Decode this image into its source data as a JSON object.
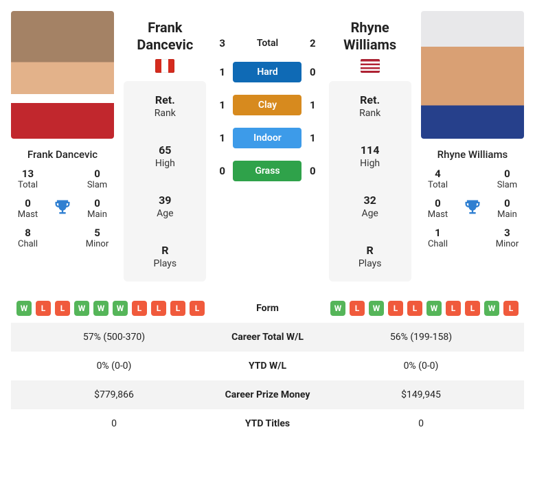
{
  "colors": {
    "hard": "#0f6ab5",
    "clay": "#d78a1e",
    "indoor": "#3d9be9",
    "grass": "#2fa24a",
    "form_win": "#55b559",
    "form_loss": "#f05a3c",
    "trophy": "#2f7fd1",
    "row_alt": "#f3f3f3"
  },
  "p1": {
    "first": "Frank",
    "last": "Dancevic",
    "full": "Frank Dancevic",
    "flag_colors": [
      "#d52b1e",
      "#ffffff",
      "#d52b1e"
    ],
    "rank": {
      "val": "Ret.",
      "lbl": "Rank"
    },
    "high": {
      "val": "65",
      "lbl": "High"
    },
    "age": {
      "val": "39",
      "lbl": "Age"
    },
    "plays": {
      "val": "R",
      "lbl": "Plays"
    },
    "titles": {
      "total": {
        "v": "13",
        "l": "Total"
      },
      "slam": {
        "v": "0",
        "l": "Slam"
      },
      "mast": {
        "v": "0",
        "l": "Mast"
      },
      "main": {
        "v": "0",
        "l": "Main"
      },
      "chall": {
        "v": "8",
        "l": "Chall"
      },
      "minor": {
        "v": "5",
        "l": "Minor"
      }
    },
    "form": [
      "W",
      "L",
      "L",
      "W",
      "W",
      "W",
      "L",
      "L",
      "L",
      "L"
    ],
    "career_wl": "57% (500-370)",
    "ytd_wl": "0% (0-0)",
    "prize": "$779,866",
    "ytd_titles": "0"
  },
  "p2": {
    "first": "Rhyne",
    "last": "Williams",
    "full": "Rhyne Williams",
    "flag_colors_stripes": true,
    "rank": {
      "val": "Ret.",
      "lbl": "Rank"
    },
    "high": {
      "val": "114",
      "lbl": "High"
    },
    "age": {
      "val": "32",
      "lbl": "Age"
    },
    "plays": {
      "val": "R",
      "lbl": "Plays"
    },
    "titles": {
      "total": {
        "v": "4",
        "l": "Total"
      },
      "slam": {
        "v": "0",
        "l": "Slam"
      },
      "mast": {
        "v": "0",
        "l": "Mast"
      },
      "main": {
        "v": "0",
        "l": "Main"
      },
      "chall": {
        "v": "1",
        "l": "Chall"
      },
      "minor": {
        "v": "3",
        "l": "Minor"
      }
    },
    "form": [
      "W",
      "L",
      "W",
      "L",
      "L",
      "W",
      "L",
      "L",
      "W",
      "L"
    ],
    "career_wl": "56% (199-158)",
    "ytd_wl": "0% (0-0)",
    "prize": "$149,945",
    "ytd_titles": "0"
  },
  "h2h": {
    "total": {
      "label": "Total",
      "p1": "3",
      "p2": "2"
    },
    "surfaces": [
      {
        "label": "Hard",
        "p1": "1",
        "p2": "0",
        "color_key": "hard"
      },
      {
        "label": "Clay",
        "p1": "1",
        "p2": "1",
        "color_key": "clay"
      },
      {
        "label": "Indoor",
        "p1": "1",
        "p2": "1",
        "color_key": "indoor"
      },
      {
        "label": "Grass",
        "p1": "0",
        "p2": "0",
        "color_key": "grass"
      }
    ]
  },
  "labels": {
    "form": "Form",
    "career_wl": "Career Total W/L",
    "ytd_wl": "YTD W/L",
    "prize": "Career Prize Money",
    "ytd_titles": "YTD Titles"
  }
}
